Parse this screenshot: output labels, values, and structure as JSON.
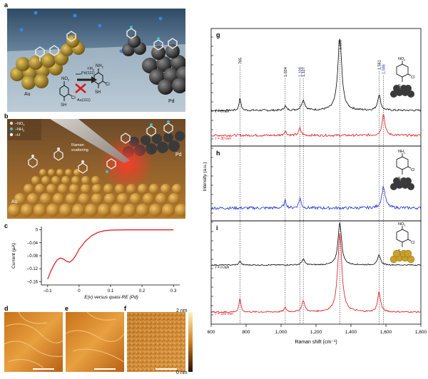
{
  "figure": {
    "panels": {
      "a": {
        "letter": "a",
        "label_au": "Au",
        "label_pd": "Pd",
        "label_pd111": "Pd(111)",
        "label_au111": "Au(111)",
        "label_h2": "+H",
        "label_h2_sub": "2",
        "mol_left": {
          "top": "NO",
          "top_sub": "2",
          "cl": "Cl",
          "sh": "SH"
        },
        "mol_right": {
          "top": "NH",
          "top_sub": "2",
          "cl": "Cl",
          "sh": "SH"
        }
      },
      "b": {
        "letter": "b",
        "legend": [
          {
            "label": "–NO",
            "sub": "2",
            "color": "#d8d8d8"
          },
          {
            "label": "–NH",
            "sub": "2",
            "color": "#3cc0c8"
          },
          {
            "label": "–H",
            "sub": "",
            "color": "#f0f0f0"
          }
        ],
        "raman_label_1": "Raman",
        "raman_label_2": "scattering",
        "label_au": "Au",
        "label_pd": "Pd"
      },
      "c": {
        "letter": "c",
        "ylabel": "Current (μA)",
        "xlabel": "E(v) versus quasi-RE (Pd)",
        "yticks": [
          "0",
          "–0.04",
          "–0.08",
          "–0.12",
          "–0.16"
        ],
        "xticks": [
          "–0.1",
          "0",
          "0.1",
          "0.2",
          "0.3"
        ]
      },
      "d": {
        "letter": "d"
      },
      "e": {
        "letter": "e"
      },
      "f": {
        "letter": "f",
        "colorbar_top": "2 nm",
        "colorbar_bottom": "0 nm"
      },
      "g": {
        "letter": "g",
        "time_top": "t = 0 min",
        "time_bottom": "t = 30 min",
        "mol": {
          "top": "NO",
          "top_sub": "2",
          "cl": "Cl",
          "s": "S"
        }
      },
      "h": {
        "letter": "h",
        "mol": {
          "top": "NH",
          "top_sub": "2",
          "cl": "Cl",
          "s": "S"
        }
      },
      "i": {
        "letter": "i",
        "time_top": "t = 0 min",
        "time_bottom": "t = 180 min",
        "mol": {
          "top": "NO",
          "top_sub": "2",
          "cl": "Cl",
          "s": "S"
        }
      }
    },
    "raman": {
      "ylabel": "Intensity (a.u.)",
      "xlabel": "Raman shift (cm⁻¹)",
      "xticks": [
        "600",
        "800",
        "1,000",
        "1,200",
        "1,400",
        "1,600",
        "1,800"
      ],
      "peak_labels": [
        {
          "text": "765",
          "color": "#000000"
        },
        {
          "text": "1,024",
          "color": "#000000"
        },
        {
          "text": "1,108",
          "color": "#2030c8"
        },
        {
          "text": "1,127",
          "color": "#000000"
        },
        {
          "text": "1,336",
          "color": "#000000"
        },
        {
          "text": "1,561",
          "color": "#000000"
        },
        {
          "text": "1,586",
          "color": "#2030c8"
        }
      ]
    },
    "colors": {
      "black_trace": "#000000",
      "red_trace": "#e0101a",
      "blue_trace": "#1f2fd0",
      "au": "#c9a02a",
      "pd": "#3a3a3a"
    }
  },
  "chart_data": [
    {
      "type": "line",
      "title": "",
      "xlabel": "E(v) versus quasi-RE (Pd)",
      "ylabel": "Current (μA)",
      "xlim": [
        -0.12,
        0.32
      ],
      "ylim": [
        -0.17,
        0.01
      ],
      "x": [
        -0.1,
        -0.09,
        -0.08,
        -0.07,
        -0.06,
        -0.05,
        -0.04,
        -0.03,
        -0.02,
        -0.01,
        0.0,
        0.02,
        0.04,
        0.06,
        0.08,
        0.1,
        0.15,
        0.2,
        0.25,
        0.3
      ],
      "series": [
        {
          "values": [
            -0.152,
            -0.128,
            -0.108,
            -0.093,
            -0.087,
            -0.09,
            -0.097,
            -0.1,
            -0.092,
            -0.078,
            -0.06,
            -0.035,
            -0.018,
            -0.008,
            -0.003,
            -0.001,
            0.0,
            0.0,
            0.0,
            0.0
          ]
        }
      ]
    },
    {
      "type": "line",
      "title": "",
      "xlabel": "Raman shift (cm⁻¹)",
      "ylabel": "Intensity (a.u.)",
      "xlim": [
        600,
        1800
      ],
      "peaks": [
        765,
        1024,
        1108,
        1127,
        1336,
        1561,
        1586
      ],
      "series": [
        {
          "values": "g: t = 0 min (black), peaks 765, 1024, 1127, 1336, 1561"
        },
        {
          "values": "g: t = 30 min (red), peaks 1024, 1108, 1586"
        },
        {
          "values": "h: (blue), peaks 1024, 1108, 1586"
        },
        {
          "values": "i: t = 0 min (black), peaks 765, 1127, 1336, 1561"
        },
        {
          "values": "i: t = 180 min (red), peaks 765, 1024, 1127, 1336, 1561"
        }
      ]
    }
  ]
}
